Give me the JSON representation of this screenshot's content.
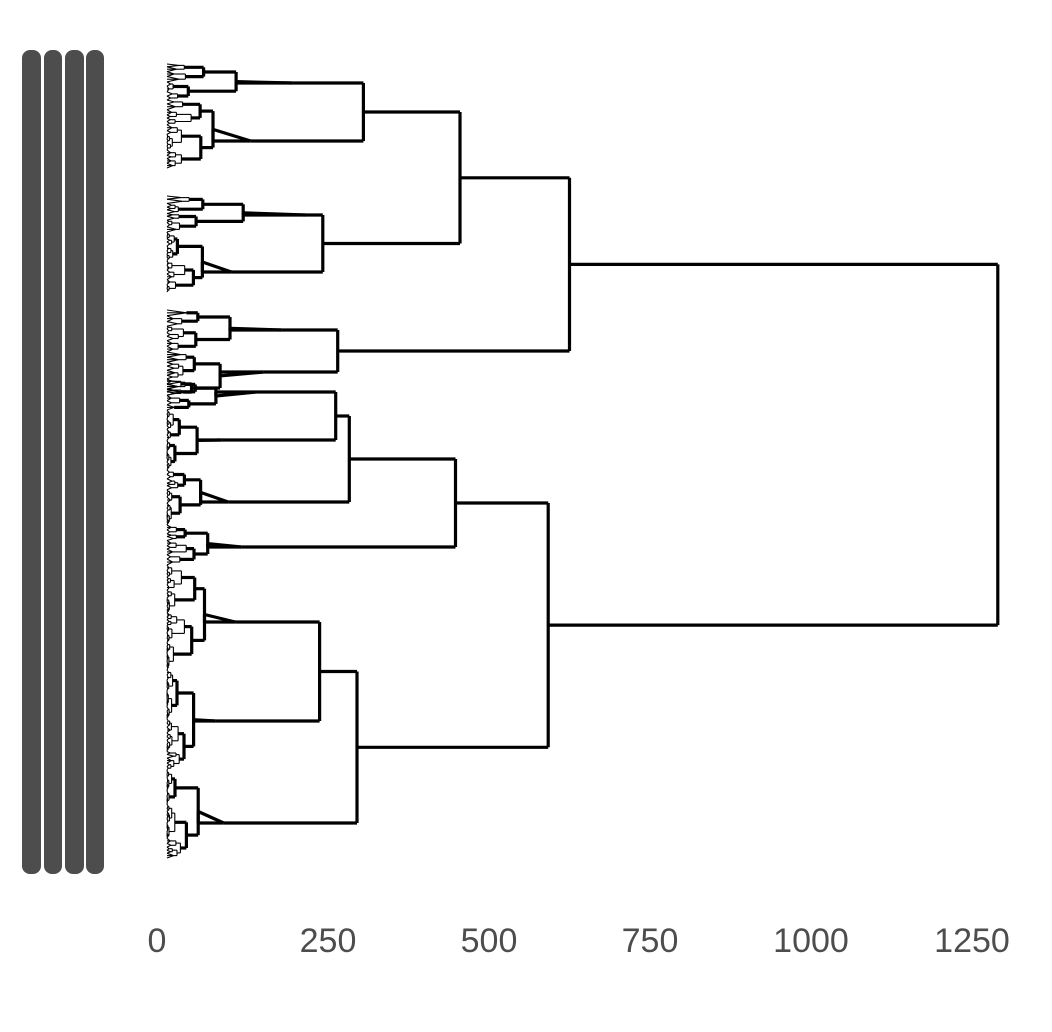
{
  "chart_data": {
    "type": "dendrogram",
    "orientation": "horizontal",
    "title": "",
    "xlabel": "",
    "ylabel": "",
    "xlim": [
      0,
      1300
    ],
    "x_ticks": [
      0,
      250,
      500,
      750,
      1000,
      1250
    ],
    "x_tick_labels": [
      "0",
      "250",
      "500",
      "750",
      "1000",
      "1250"
    ],
    "grid": false,
    "legend": "none",
    "leaf_label_columns": 4,
    "leaf_labels_legible": false,
    "leaf_count_approx": 100,
    "merges": [
      {
        "id": "root",
        "height": 1290,
        "children": [
          "A",
          "B"
        ]
      },
      {
        "id": "A",
        "height": 625,
        "children": [
          "A1",
          "A2"
        ]
      },
      {
        "id": "A1",
        "height": 455,
        "children": [
          "A1a",
          "A1b"
        ]
      },
      {
        "id": "A1a",
        "height": 305,
        "children": [
          "A1a-1",
          "A1a-2"
        ]
      },
      {
        "id": "A1a-1",
        "height": 195
      },
      {
        "id": "A1a-2",
        "height": 130
      },
      {
        "id": "A1b",
        "height": 242,
        "children": [
          "A1b-1",
          "A1b-2"
        ]
      },
      {
        "id": "A1b-1",
        "height": 215
      },
      {
        "id": "A1b-2",
        "height": 100
      },
      {
        "id": "A2",
        "height": 265,
        "children": [
          "A2-1",
          "A2-2"
        ]
      },
      {
        "id": "A2-1",
        "height": 178
      },
      {
        "id": "A2-2",
        "height": 150
      },
      {
        "id": "B",
        "height": 592,
        "children": [
          "B1",
          "B2"
        ]
      },
      {
        "id": "B1",
        "height": 448,
        "children": [
          "B1a",
          "B1b"
        ]
      },
      {
        "id": "B1a",
        "height": 283,
        "children": [
          "B1a-1",
          "B1a-2"
        ]
      },
      {
        "id": "B1a-1",
        "height": 262,
        "children": [
          "B1a-1a",
          "B1a-1b"
        ]
      },
      {
        "id": "B1a-1a",
        "height": 138
      },
      {
        "id": "B1a-1b",
        "height": 85
      },
      {
        "id": "B1a-2",
        "height": 95
      },
      {
        "id": "B1b",
        "height": 115
      },
      {
        "id": "B2",
        "height": 295,
        "children": [
          "B2a",
          "B2b"
        ]
      },
      {
        "id": "B2a",
        "height": 237,
        "children": [
          "B2a-1",
          "B2a-2"
        ]
      },
      {
        "id": "B2a-1",
        "height": 106
      },
      {
        "id": "B2a-2",
        "height": 75
      },
      {
        "id": "B2b",
        "height": 88
      }
    ]
  }
}
